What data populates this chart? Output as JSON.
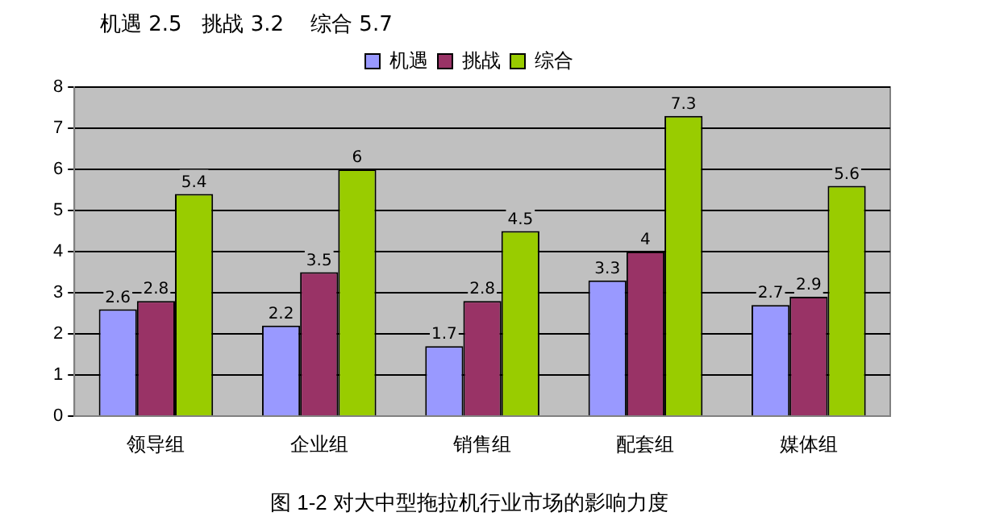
{
  "chart_data": {
    "type": "bar",
    "title": "图 1-2 对大中型拖拉机行业市场的影响力度",
    "annotations": [
      "机遇 2.5   挑战 3.2    综合 5.7"
    ],
    "categories": [
      "领导组",
      "企业组",
      "销售组",
      "配套组",
      "媒体组"
    ],
    "series": [
      {
        "name": "机遇",
        "color": "#9999ff",
        "values": [
          2.6,
          2.2,
          1.7,
          3.3,
          2.7
        ]
      },
      {
        "name": "挑战",
        "color": "#993366",
        "values": [
          2.8,
          3.5,
          2.8,
          4,
          2.9
        ]
      },
      {
        "name": "综合",
        "color": "#99cc00",
        "values": [
          5.4,
          6,
          4.5,
          7.3,
          5.6
        ]
      }
    ],
    "ylim": [
      0,
      8
    ],
    "yticks": [
      0,
      1,
      2,
      3,
      4,
      5,
      6,
      7,
      8
    ],
    "grid": "y",
    "legend": "top",
    "data_labels": true
  }
}
